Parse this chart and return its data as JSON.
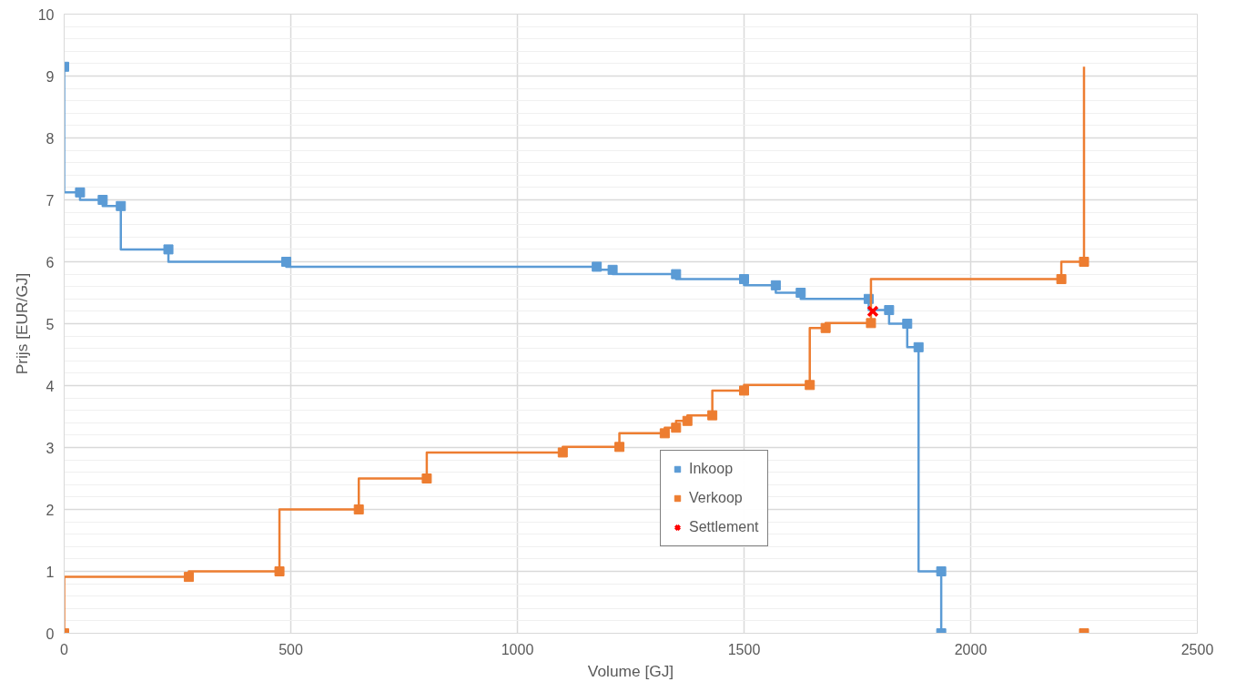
{
  "chart_data": {
    "type": "step",
    "xlabel": "Volume [GJ]",
    "ylabel": "Prijs [EUR/GJ]",
    "xlim": [
      0,
      2500
    ],
    "xticks": [
      0,
      500,
      1000,
      1500,
      2000,
      2500
    ],
    "ylim": [
      0,
      10
    ],
    "yticks": [
      0,
      1,
      2,
      3,
      4,
      5,
      6,
      7,
      8,
      9,
      10
    ],
    "grid": true,
    "legend": "center",
    "marker": "square",
    "line_style": "solid",
    "series": [
      {
        "name": "Inkoop",
        "color": "#5b9bd5",
        "x": [
          0,
          35,
          85,
          125,
          230,
          490,
          1175,
          1210,
          1350,
          1500,
          1570,
          1625,
          1775,
          1820,
          1860,
          1885,
          1935,
          1935
        ],
        "values": [
          9.15,
          7.12,
          7.0,
          6.9,
          6.2,
          6.0,
          5.92,
          5.87,
          5.8,
          5.72,
          5.62,
          5.5,
          5.4,
          5.22,
          5.0,
          4.62,
          1.0,
          0
        ]
      },
      {
        "name": "Verkoop",
        "color": "#ed7d31",
        "x": [
          0,
          275,
          475,
          650,
          800,
          1100,
          1225,
          1325,
          1350,
          1375,
          1430,
          1500,
          1645,
          1680,
          1780,
          2200,
          2250
        ],
        "values": [
          0,
          0.91,
          1.0,
          2.0,
          2.5,
          2.92,
          3.01,
          3.23,
          3.32,
          3.43,
          3.52,
          3.92,
          4.01,
          4.93,
          5.01,
          5.72,
          6.0
        ]
      },
      {
        "color": "#ed7d31",
        "marker": "none",
        "x": [
          2250,
          2250
        ],
        "values": [
          6.0,
          9.15
        ]
      },
      {
        "type": "scatter",
        "color": "#ed7d31",
        "x": [
          2250
        ],
        "values": [
          0
        ]
      },
      {
        "name": "Settlement",
        "type": "scatter",
        "marker": "cross",
        "color": "#ff0000",
        "x": [
          1784
        ],
        "values": [
          5.2
        ]
      }
    ]
  }
}
